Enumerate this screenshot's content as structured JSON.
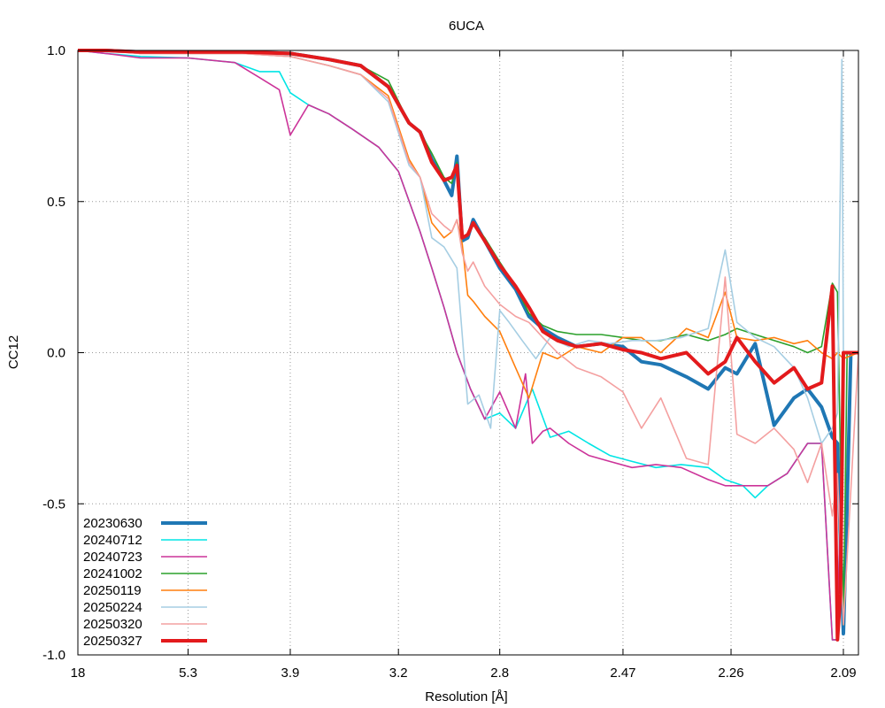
{
  "chart_data": {
    "type": "line",
    "title": "6UCA",
    "xlabel": "Resolution [Å]",
    "ylabel": "CC12",
    "ylim": [
      -1.0,
      1.0
    ],
    "x_scale": "1/d^2",
    "xlim": [
      18,
      2.07
    ],
    "xticks": [
      {
        "label": "18",
        "value": 18
      },
      {
        "label": "5.3",
        "value": 5.3
      },
      {
        "label": "3.9",
        "value": 3.9
      },
      {
        "label": "3.2",
        "value": 3.2
      },
      {
        "label": "2.8",
        "value": 2.8
      },
      {
        "label": "2.47",
        "value": 2.47
      },
      {
        "label": "2.26",
        "value": 2.26
      },
      {
        "label": "2.09",
        "value": 2.09
      }
    ],
    "yticks": [
      {
        "label": "1.0",
        "value": 1.0
      },
      {
        "label": "0.5",
        "value": 0.5
      },
      {
        "label": "0.0",
        "value": 0.0
      },
      {
        "label": "-0.5",
        "value": -0.5
      },
      {
        "label": "-1.0",
        "value": -1.0
      }
    ],
    "grid": true,
    "legend_position": "bottom-left",
    "series": [
      {
        "name": "20230630",
        "color": "#1f77b4",
        "thick": true,
        "x": [
          18,
          9.4,
          6.8,
          5.3,
          4.4,
          3.9,
          3.6,
          3.4,
          3.25,
          3.15,
          3.1,
          3.05,
          3.0,
          2.97,
          2.95,
          2.93,
          2.91,
          2.89,
          2.85,
          2.8,
          2.75,
          2.71,
          2.67,
          2.63,
          2.58,
          2.52,
          2.47,
          2.43,
          2.39,
          2.34,
          2.3,
          2.27,
          2.25,
          2.22,
          2.19,
          2.16,
          2.14,
          2.12,
          2.105,
          2.098,
          2.09,
          2.085,
          2.08,
          2.07
        ],
        "y": [
          1.0,
          1.0,
          0.995,
          0.995,
          0.995,
          0.99,
          0.97,
          0.95,
          0.88,
          0.76,
          0.73,
          0.64,
          0.57,
          0.52,
          0.65,
          0.37,
          0.38,
          0.44,
          0.37,
          0.28,
          0.21,
          0.12,
          0.08,
          0.05,
          0.02,
          0.03,
          0.02,
          -0.03,
          -0.04,
          -0.08,
          -0.12,
          -0.05,
          -0.07,
          0.03,
          -0.24,
          -0.15,
          -0.12,
          -0.18,
          -0.28,
          -0.3,
          -0.93,
          -0.5,
          0.0,
          0.0
        ]
      },
      {
        "name": "20240712",
        "color": "#00e5e5",
        "thick": false,
        "x": [
          18,
          9.4,
          6.8,
          5.3,
          4.5,
          4.2,
          4.0,
          3.9,
          3.75,
          3.6,
          3.45,
          3.3,
          3.2,
          3.1,
          3.05,
          3.0,
          2.95,
          2.9,
          2.85,
          2.8,
          2.75,
          2.7,
          2.65,
          2.6,
          2.55,
          2.5,
          2.45,
          2.4,
          2.35,
          2.3,
          2.27,
          2.24,
          2.22,
          2.2,
          2.17,
          2.14,
          2.12,
          2.105,
          2.098,
          2.09,
          2.07
        ],
        "y": [
          1.0,
          0.99,
          0.98,
          0.975,
          0.96,
          0.93,
          0.93,
          0.86,
          0.82,
          0.79,
          0.74,
          0.68,
          0.6,
          0.4,
          0.28,
          0.15,
          0.0,
          -0.12,
          -0.22,
          -0.2,
          -0.25,
          -0.12,
          -0.28,
          -0.26,
          -0.3,
          -0.34,
          -0.36,
          -0.38,
          -0.37,
          -0.38,
          -0.42,
          -0.44,
          -0.48,
          -0.44,
          -0.4,
          -0.3,
          -0.3,
          -0.95,
          -0.95,
          0.0,
          0.0
        ]
      },
      {
        "name": "20240723",
        "color": "#cc3399",
        "thick": false,
        "x": [
          18,
          9.4,
          6.8,
          5.3,
          4.5,
          4.2,
          4.0,
          3.9,
          3.75,
          3.6,
          3.45,
          3.3,
          3.2,
          3.1,
          3.05,
          3.0,
          2.95,
          2.9,
          2.85,
          2.8,
          2.75,
          2.72,
          2.7,
          2.67,
          2.65,
          2.6,
          2.55,
          2.5,
          2.45,
          2.4,
          2.35,
          2.3,
          2.27,
          2.24,
          2.22,
          2.2,
          2.17,
          2.14,
          2.12,
          2.105,
          2.098,
          2.09,
          2.07
        ],
        "y": [
          1.0,
          0.99,
          0.975,
          0.975,
          0.96,
          0.91,
          0.87,
          0.72,
          0.82,
          0.79,
          0.74,
          0.68,
          0.6,
          0.4,
          0.28,
          0.15,
          0.0,
          -0.12,
          -0.22,
          -0.13,
          -0.25,
          -0.07,
          -0.3,
          -0.26,
          -0.25,
          -0.3,
          -0.34,
          -0.36,
          -0.38,
          -0.37,
          -0.38,
          -0.42,
          -0.44,
          -0.44,
          -0.44,
          -0.44,
          -0.4,
          -0.3,
          -0.3,
          -0.95,
          -0.95,
          0.0,
          0.0
        ]
      },
      {
        "name": "20241002",
        "color": "#2ca02c",
        "thick": false,
        "x": [
          18,
          9.4,
          6.8,
          5.3,
          4.4,
          3.9,
          3.6,
          3.4,
          3.25,
          3.15,
          3.1,
          3.05,
          3.0,
          2.97,
          2.95,
          2.93,
          2.91,
          2.89,
          2.85,
          2.8,
          2.75,
          2.71,
          2.67,
          2.63,
          2.58,
          2.52,
          2.47,
          2.43,
          2.39,
          2.34,
          2.3,
          2.27,
          2.25,
          2.22,
          2.19,
          2.16,
          2.14,
          2.12,
          2.105,
          2.098,
          2.09,
          2.085,
          2.08,
          2.07
        ],
        "y": [
          1.0,
          1.0,
          0.995,
          0.995,
          0.995,
          0.99,
          0.97,
          0.95,
          0.9,
          0.76,
          0.73,
          0.66,
          0.58,
          0.56,
          0.63,
          0.38,
          0.39,
          0.43,
          0.38,
          0.3,
          0.22,
          0.13,
          0.09,
          0.07,
          0.06,
          0.06,
          0.05,
          0.04,
          0.04,
          0.06,
          0.04,
          0.06,
          0.08,
          0.06,
          0.04,
          0.02,
          0.0,
          0.02,
          0.23,
          0.2,
          -0.9,
          0.0,
          0.0,
          0.0
        ]
      },
      {
        "name": "20250119",
        "color": "#ff7f0e",
        "thick": false,
        "x": [
          18,
          9.4,
          6.8,
          5.3,
          4.4,
          3.9,
          3.6,
          3.4,
          3.25,
          3.15,
          3.1,
          3.05,
          3.0,
          2.97,
          2.95,
          2.93,
          2.91,
          2.89,
          2.85,
          2.8,
          2.75,
          2.71,
          2.67,
          2.63,
          2.58,
          2.52,
          2.47,
          2.43,
          2.39,
          2.34,
          2.3,
          2.27,
          2.25,
          2.22,
          2.19,
          2.16,
          2.14,
          2.12,
          2.105,
          2.098,
          2.09,
          2.07
        ],
        "y": [
          1.0,
          1.0,
          0.99,
          0.99,
          0.99,
          0.98,
          0.95,
          0.92,
          0.85,
          0.64,
          0.58,
          0.43,
          0.38,
          0.4,
          0.44,
          0.36,
          0.19,
          0.17,
          0.12,
          0.07,
          -0.05,
          -0.15,
          0.0,
          -0.02,
          0.02,
          0.0,
          0.05,
          0.05,
          0.0,
          0.08,
          0.05,
          0.2,
          0.05,
          0.04,
          0.05,
          0.03,
          0.04,
          0.0,
          -0.02,
          0.0,
          -0.02,
          0.0
        ]
      },
      {
        "name": "20250224",
        "color": "#a6cee3",
        "thick": false,
        "x": [
          18,
          9.4,
          6.8,
          5.3,
          4.4,
          3.9,
          3.6,
          3.4,
          3.25,
          3.15,
          3.1,
          3.05,
          3.0,
          2.95,
          2.91,
          2.87,
          2.83,
          2.8,
          2.77,
          2.73,
          2.69,
          2.65,
          2.6,
          2.55,
          2.5,
          2.45,
          2.4,
          2.35,
          2.3,
          2.27,
          2.25,
          2.22,
          2.19,
          2.16,
          2.14,
          2.12,
          2.105,
          2.098,
          2.092,
          2.09,
          2.085,
          2.07
        ],
        "y": [
          1.0,
          1.0,
          0.99,
          0.99,
          0.99,
          0.98,
          0.95,
          0.92,
          0.83,
          0.62,
          0.58,
          0.38,
          0.35,
          0.28,
          -0.17,
          -0.14,
          -0.25,
          0.14,
          0.1,
          0.04,
          -0.02,
          0.05,
          0.02,
          0.04,
          0.03,
          0.04,
          0.04,
          0.05,
          0.08,
          0.34,
          0.1,
          0.05,
          0.02,
          -0.05,
          -0.15,
          -0.3,
          -0.25,
          -0.2,
          0.97,
          0.0,
          0.0,
          0.0
        ]
      },
      {
        "name": "20250320",
        "color": "#f4a0a0",
        "thick": false,
        "x": [
          18,
          9.4,
          6.8,
          5.3,
          4.4,
          3.9,
          3.6,
          3.4,
          3.25,
          3.15,
          3.1,
          3.05,
          3.0,
          2.97,
          2.95,
          2.93,
          2.91,
          2.89,
          2.85,
          2.8,
          2.75,
          2.71,
          2.67,
          2.63,
          2.58,
          2.52,
          2.47,
          2.43,
          2.39,
          2.34,
          2.3,
          2.27,
          2.25,
          2.22,
          2.19,
          2.16,
          2.14,
          2.12,
          2.105,
          2.098,
          2.09,
          2.07
        ],
        "y": [
          1.0,
          1.0,
          0.99,
          0.99,
          0.99,
          0.98,
          0.95,
          0.92,
          0.84,
          0.63,
          0.58,
          0.46,
          0.42,
          0.4,
          0.44,
          0.33,
          0.27,
          0.3,
          0.22,
          0.16,
          0.12,
          0.1,
          0.05,
          0.0,
          -0.05,
          -0.08,
          -0.13,
          -0.25,
          -0.15,
          -0.35,
          -0.37,
          0.25,
          -0.27,
          -0.3,
          -0.25,
          -0.32,
          -0.43,
          -0.3,
          -0.54,
          -0.4,
          -0.9,
          0.0
        ]
      },
      {
        "name": "20250327",
        "color": "#e31a1c",
        "thick": true,
        "x": [
          18,
          9.4,
          6.8,
          5.3,
          4.4,
          3.9,
          3.6,
          3.4,
          3.25,
          3.15,
          3.1,
          3.05,
          3.0,
          2.97,
          2.95,
          2.93,
          2.91,
          2.89,
          2.85,
          2.8,
          2.75,
          2.71,
          2.67,
          2.63,
          2.58,
          2.52,
          2.47,
          2.43,
          2.39,
          2.34,
          2.3,
          2.27,
          2.25,
          2.22,
          2.19,
          2.16,
          2.14,
          2.12,
          2.105,
          2.098,
          2.094,
          2.09,
          2.085,
          2.07
        ],
        "y": [
          1.0,
          1.0,
          0.995,
          0.995,
          0.995,
          0.99,
          0.97,
          0.95,
          0.88,
          0.76,
          0.73,
          0.63,
          0.57,
          0.58,
          0.62,
          0.38,
          0.39,
          0.43,
          0.37,
          0.29,
          0.22,
          0.15,
          0.07,
          0.04,
          0.02,
          0.03,
          0.01,
          0.0,
          -0.02,
          0.0,
          -0.07,
          -0.03,
          0.05,
          -0.03,
          -0.1,
          -0.05,
          -0.12,
          -0.1,
          0.22,
          -0.95,
          -0.8,
          0.0,
          0.0,
          0.0
        ]
      }
    ]
  }
}
